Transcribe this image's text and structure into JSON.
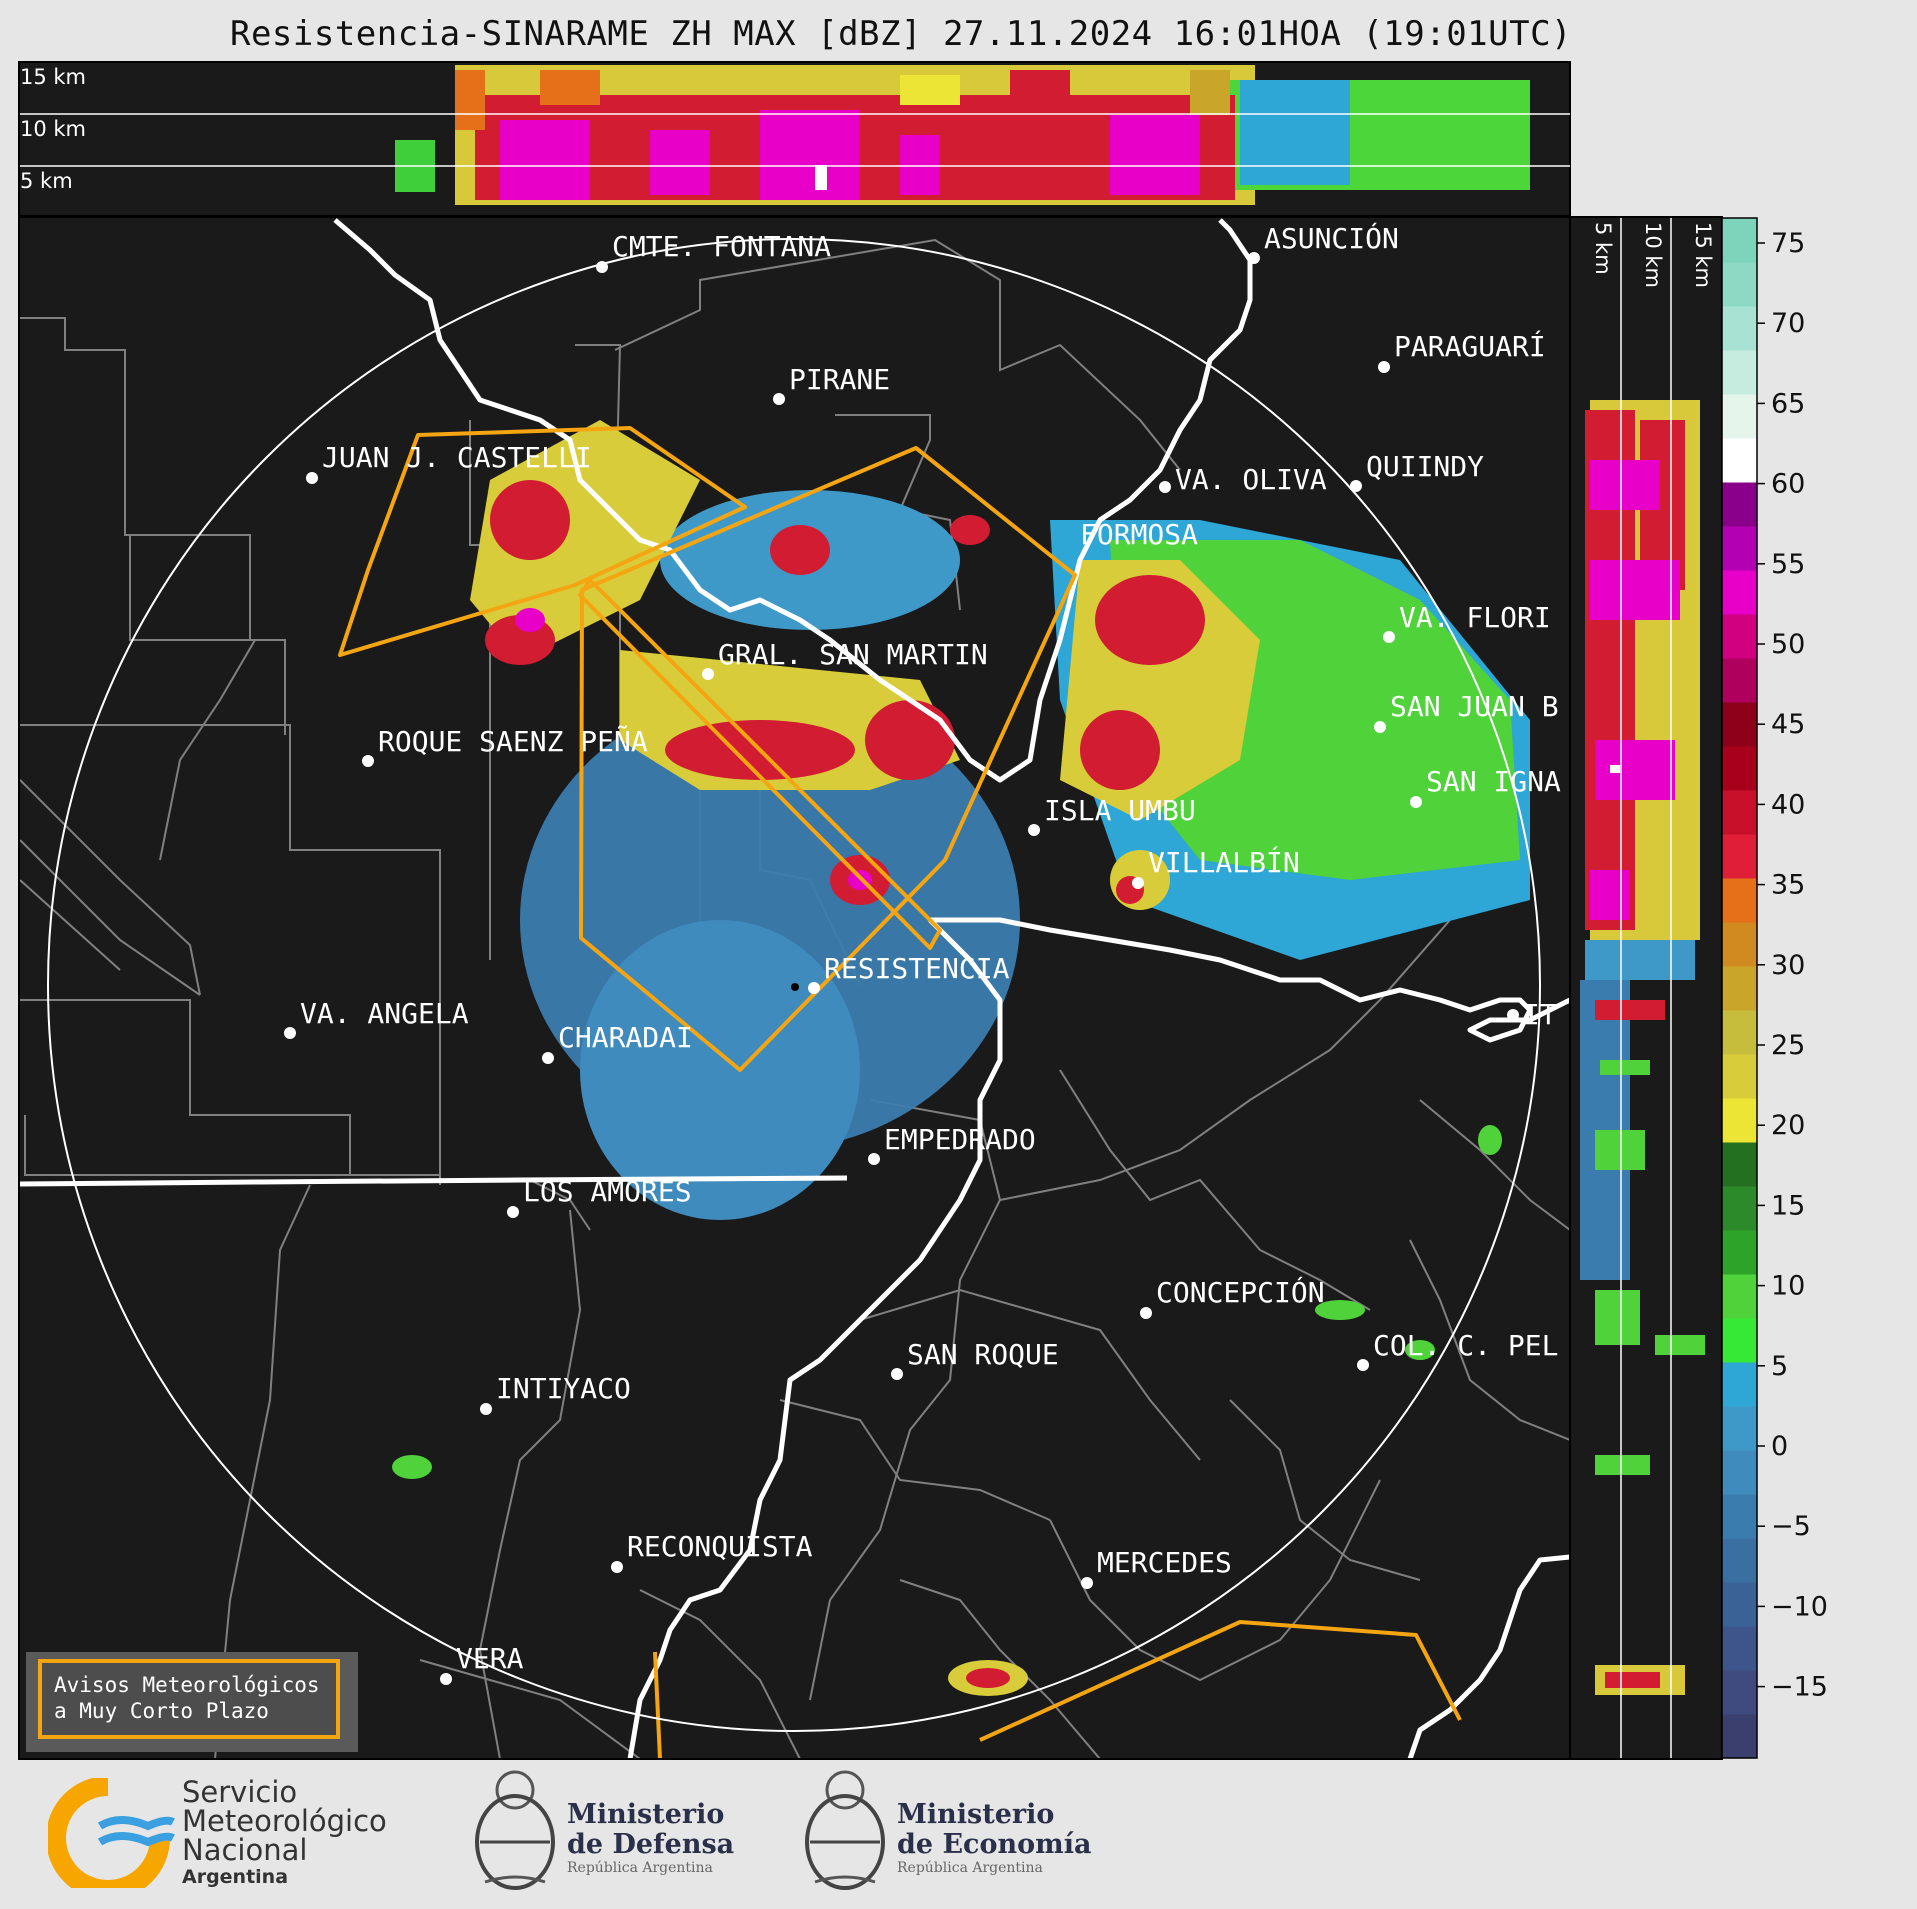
{
  "title": "Resistencia-SINARAME ZH MAX [dBZ] 27.11.2024 16:01HOA (19:01UTC)",
  "top_profile_labels": [
    "15 km",
    "10 km",
    "5 km"
  ],
  "side_profile_labels": [
    "5 km",
    "10 km",
    "15 km"
  ],
  "colorbar": {
    "ticks": [
      "75",
      "70",
      "65",
      "60",
      "55",
      "50",
      "45",
      "40",
      "35",
      "30",
      "25",
      "20",
      "15",
      "10",
      "5",
      "0",
      "−5",
      "−10",
      "−15"
    ],
    "colors": [
      "#3a3f6e",
      "#3f4a7e",
      "#3d558a",
      "#3a6296",
      "#3a6fa2",
      "#3b7cae",
      "#3f8bbd",
      "#3f99c8",
      "#2ea6d6",
      "#37e937",
      "#4fd23a",
      "#2ea32a",
      "#2d8a2a",
      "#237021",
      "#ede535",
      "#d8cc3a",
      "#c7bd3d",
      "#c9a52a",
      "#d18a1f",
      "#e6701a",
      "#e01e38",
      "#c9102a",
      "#a8001c",
      "#8e001a",
      "#b0005d",
      "#d10080",
      "#e800c8",
      "#b300b3",
      "#8a008a",
      "#ffffff",
      "#e5f5ec",
      "#c6ece0",
      "#a8e2d2",
      "#8ed9c4",
      "#7dd4bb"
    ]
  },
  "cities": [
    {
      "name": "CMTE. FONTANA"
    },
    {
      "name": "ASUNCIÓN"
    },
    {
      "name": "PARAGUARÍ"
    },
    {
      "name": "PIRANE"
    },
    {
      "name": "JUAN J. CASTELLI"
    },
    {
      "name": "VA. OLIVA"
    },
    {
      "name": "QUIINDY"
    },
    {
      "name": "FORMOSA"
    },
    {
      "name": "VA. FLORI"
    },
    {
      "name": "GRAL. SAN MARTIN"
    },
    {
      "name": "SAN JUAN B"
    },
    {
      "name": "ROQUE SAENZ PEÑA"
    },
    {
      "name": "SAN IGNA"
    },
    {
      "name": "ISLA UMBU"
    },
    {
      "name": "VILLALBÍN"
    },
    {
      "name": "RESISTENCIA"
    },
    {
      "name": "VA. ANGELA"
    },
    {
      "name": "CHARADAI"
    },
    {
      "name": "IT"
    },
    {
      "name": "EMPEDRADO"
    },
    {
      "name": "LOS AMORES"
    },
    {
      "name": "CONCEPCIÓN"
    },
    {
      "name": "COL. C. PEL"
    },
    {
      "name": "SAN ROQUE"
    },
    {
      "name": "INTIYACO"
    },
    {
      "name": "RECONQUISTA"
    },
    {
      "name": "MERCEDES"
    },
    {
      "name": "VERA"
    }
  ],
  "avisos": {
    "line1": "Avisos Meteorológicos",
    "line2": "a Muy Corto Plazo"
  },
  "logos": {
    "smn": {
      "line1": "Servicio",
      "line2": "Meteorológico",
      "line3": "Nacional",
      "line4": "Argentina"
    },
    "defensa": {
      "line1": "Ministerio",
      "line2": "de Defensa",
      "line3": "República Argentina"
    },
    "economia": {
      "line1": "Ministerio",
      "line2": "de Economía",
      "line3": "República Argentina"
    }
  }
}
